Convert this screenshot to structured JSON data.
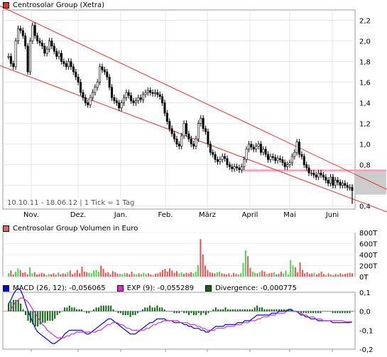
{
  "chart_data": [
    {
      "type": "candlestick",
      "title": "Centrosolar Group (Xetra)",
      "info": "10.10.11 - 18.06.12 | 1 Tick = 1 Tag",
      "x_labels": [
        "Nov.",
        "Dez.",
        "Jan.",
        "Feb.",
        "März",
        "April",
        "Mai",
        "Juni"
      ],
      "y_ticks": [
        "2,2",
        "2,0",
        "1,8",
        "1,6",
        "1,4",
        "1,2",
        "1,0",
        "0,8",
        "0,6",
        "0,4"
      ],
      "ylim": [
        0.37,
        2.3
      ],
      "close": [
        1.85,
        1.78,
        1.75,
        2.0,
        2.12,
        2.1,
        2.05,
        1.95,
        1.7,
        2.0,
        2.15,
        2.05,
        2.0,
        1.98,
        1.95,
        1.88,
        1.92,
        2.0,
        1.95,
        1.9,
        1.85,
        1.88,
        1.8,
        1.78,
        1.75,
        1.8,
        1.75,
        1.7,
        1.65,
        1.6,
        1.5,
        1.45,
        1.4,
        1.38,
        1.45,
        1.5,
        1.55,
        1.6,
        1.75,
        1.72,
        1.7,
        1.65,
        1.55,
        1.45,
        1.42,
        1.4,
        1.35,
        1.4,
        1.45,
        1.5,
        1.47,
        1.42,
        1.4,
        1.42,
        1.45,
        1.43,
        1.48,
        1.5,
        1.52,
        1.5,
        1.49,
        1.5,
        1.48,
        1.46,
        1.4,
        1.3,
        1.22,
        1.15,
        1.1,
        1.05,
        1.0,
        0.98,
        1.08,
        1.2,
        1.1,
        1.05,
        1.0,
        0.98,
        1.05,
        1.2,
        1.25,
        1.15,
        1.12,
        1.0,
        0.92,
        0.9,
        0.85,
        0.83,
        0.85,
        0.88,
        0.86,
        0.8,
        0.78,
        0.76,
        0.78,
        0.77,
        0.75,
        0.78,
        0.85,
        0.95,
        1.0,
        0.97,
        0.95,
        0.98,
        1.0,
        0.92,
        0.95,
        0.9,
        0.85,
        0.88,
        0.87,
        0.84,
        0.86,
        0.85,
        0.82,
        0.78,
        0.8,
        0.82,
        0.88,
        0.92,
        1.02,
        0.9,
        0.88,
        0.8,
        0.77,
        0.72,
        0.72,
        0.7,
        0.68,
        0.72,
        0.7,
        0.68,
        0.65,
        0.62,
        0.68,
        0.6,
        0.65,
        0.63,
        0.6,
        0.62,
        0.6,
        0.58,
        0.58,
        0.55
      ],
      "channel_upper": {
        "x": [
          0,
          143
        ],
        "y": [
          2.3,
          0.72
        ]
      },
      "channel_lower": {
        "x": [
          0,
          143
        ],
        "y": [
          1.73,
          0.47
        ]
      },
      "horizontal_line": 0.745,
      "shaded_region": [
        0.51,
        0.74
      ],
      "colors": {
        "up": "#22aa22",
        "down": "#cc2222",
        "channel": "#dd3333",
        "horizontal": "#ff9ab8",
        "shade": "#cccccc"
      }
    },
    {
      "type": "bar",
      "title": "Centrosolar Group Volumen in Euro",
      "y_ticks": [
        "800T",
        "600T",
        "400T",
        "200T",
        "0T"
      ],
      "ylim": [
        0,
        800
      ],
      "unit": "T",
      "values": [
        60,
        110,
        40,
        90,
        150,
        120,
        70,
        80,
        45,
        170,
        60,
        80,
        40,
        50,
        70,
        55,
        30,
        50,
        40,
        60,
        35,
        75,
        45,
        60,
        50,
        80,
        110,
        45,
        70,
        120,
        60,
        180,
        90,
        80,
        70,
        60,
        110,
        120,
        90,
        200,
        140,
        70,
        80,
        40,
        100,
        80,
        55,
        50,
        45,
        70,
        60,
        40,
        90,
        50,
        40,
        60,
        45,
        70,
        50,
        60,
        40,
        30,
        55,
        60,
        80,
        120,
        140,
        90,
        150,
        110,
        70,
        100,
        60,
        80,
        50,
        70,
        60,
        80,
        60,
        90,
        210,
        680,
        400,
        200,
        120,
        80,
        70,
        60,
        80,
        90,
        60,
        50,
        40,
        60,
        30,
        70,
        50,
        40,
        60,
        250,
        480,
        370,
        160,
        90,
        70,
        60,
        80,
        110,
        90,
        50,
        60,
        70,
        80,
        40,
        50,
        90,
        60,
        110,
        40,
        300,
        200,
        170,
        80,
        260,
        120,
        60,
        80,
        50,
        60,
        70,
        40,
        60,
        90,
        50,
        30,
        60,
        40,
        30,
        50,
        40,
        60,
        40,
        50,
        60,
        70,
        60
      ],
      "up": [
        1,
        0,
        0,
        1,
        1,
        0,
        0,
        0,
        0,
        1,
        1,
        0,
        0,
        0,
        0,
        0,
        1,
        1,
        0,
        0,
        0,
        1,
        0,
        0,
        0,
        1,
        0,
        0,
        0,
        0,
        0,
        0,
        0,
        0,
        1,
        1,
        1,
        1,
        1,
        0,
        0,
        0,
        0,
        0,
        0,
        0,
        0,
        1,
        1,
        1,
        0,
        0,
        0,
        1,
        1,
        0,
        1,
        1,
        1,
        0,
        0,
        1,
        0,
        0,
        0,
        0,
        0,
        0,
        0,
        0,
        0,
        0,
        1,
        1,
        0,
        0,
        0,
        0,
        1,
        1,
        1,
        0,
        0,
        0,
        0,
        0,
        0,
        0,
        1,
        1,
        0,
        0,
        0,
        0,
        1,
        0,
        0,
        1,
        1,
        1,
        1,
        0,
        0,
        1,
        1,
        0,
        1,
        0,
        0,
        1,
        0,
        0,
        1,
        0,
        0,
        0,
        1,
        1,
        1,
        1,
        1,
        0,
        0,
        0,
        0,
        0,
        0,
        0,
        0,
        1,
        0,
        0,
        0,
        0,
        1,
        0,
        1,
        0,
        0,
        1,
        0,
        0,
        0,
        0
      ],
      "colors": {
        "up": "#55cc55",
        "down": "#dd5555"
      }
    },
    {
      "type": "line",
      "series": [
        {
          "name": "MACD (26, 12): -0,056065",
          "color": "#0000cc",
          "values": [
            0.04,
            0.06,
            0.09,
            0.11,
            0.12,
            0.11,
            0.08,
            0.04,
            0.0,
            -0.03,
            -0.06,
            -0.09,
            -0.11,
            -0.12,
            -0.13,
            -0.14,
            -0.15,
            -0.16,
            -0.17,
            -0.17,
            -0.16,
            -0.15,
            -0.14,
            -0.12,
            -0.11,
            -0.1,
            -0.1,
            -0.1,
            -0.1,
            -0.1,
            -0.1,
            -0.11,
            -0.12,
            -0.12,
            -0.11,
            -0.1,
            -0.09,
            -0.08,
            -0.07,
            -0.06,
            -0.05,
            -0.04,
            -0.04,
            -0.05,
            -0.06,
            -0.07,
            -0.08,
            -0.09,
            -0.1,
            -0.11,
            -0.12,
            -0.12,
            -0.12,
            -0.11,
            -0.1,
            -0.09,
            -0.08,
            -0.07,
            -0.06,
            -0.06,
            -0.05,
            -0.04,
            -0.04,
            -0.04,
            -0.04,
            -0.05,
            -0.05,
            -0.05,
            -0.06,
            -0.06,
            -0.06,
            -0.06,
            -0.07,
            -0.07,
            -0.08,
            -0.08,
            -0.09,
            -0.09,
            -0.09,
            -0.1,
            -0.1,
            -0.11,
            -0.11,
            -0.1,
            -0.09,
            -0.08,
            -0.08,
            -0.08,
            -0.08,
            -0.07,
            -0.07,
            -0.07,
            -0.07,
            -0.07,
            -0.06,
            -0.06,
            -0.06,
            -0.05,
            -0.05,
            -0.05,
            -0.04,
            -0.03,
            -0.02,
            -0.02,
            -0.02,
            -0.02,
            -0.02,
            -0.02,
            -0.01,
            -0.01,
            -0.01,
            0.0,
            0.0,
            0.0,
            0.0,
            0.01,
            0.01,
            0.0,
            0.0,
            -0.01,
            -0.02,
            -0.02,
            -0.03,
            -0.03,
            -0.04,
            -0.04,
            -0.04,
            -0.05,
            -0.05,
            -0.05,
            -0.05,
            -0.05,
            -0.05,
            -0.06,
            -0.06,
            -0.06,
            -0.06,
            -0.06,
            -0.06,
            -0.06,
            -0.06,
            -0.056
          ]
        },
        {
          "name": "EXP (9): -0,055289",
          "color": "#cc33cc",
          "values": [
            0.0,
            0.01,
            0.03,
            0.05,
            0.06,
            0.07,
            0.07,
            0.06,
            0.05,
            0.03,
            0.01,
            -0.01,
            -0.03,
            -0.05,
            -0.07,
            -0.08,
            -0.1,
            -0.11,
            -0.12,
            -0.13,
            -0.14,
            -0.14,
            -0.14,
            -0.14,
            -0.13,
            -0.13,
            -0.12,
            -0.12,
            -0.11,
            -0.11,
            -0.11,
            -0.11,
            -0.11,
            -0.11,
            -0.11,
            -0.11,
            -0.11,
            -0.1,
            -0.1,
            -0.09,
            -0.08,
            -0.07,
            -0.07,
            -0.06,
            -0.06,
            -0.06,
            -0.07,
            -0.07,
            -0.08,
            -0.09,
            -0.09,
            -0.1,
            -0.1,
            -0.1,
            -0.1,
            -0.1,
            -0.1,
            -0.09,
            -0.09,
            -0.08,
            -0.07,
            -0.07,
            -0.06,
            -0.06,
            -0.05,
            -0.05,
            -0.05,
            -0.05,
            -0.05,
            -0.05,
            -0.05,
            -0.06,
            -0.06,
            -0.06,
            -0.06,
            -0.07,
            -0.07,
            -0.07,
            -0.08,
            -0.08,
            -0.09,
            -0.09,
            -0.1,
            -0.1,
            -0.1,
            -0.1,
            -0.09,
            -0.09,
            -0.09,
            -0.09,
            -0.08,
            -0.08,
            -0.08,
            -0.08,
            -0.07,
            -0.07,
            -0.07,
            -0.06,
            -0.06,
            -0.06,
            -0.05,
            -0.05,
            -0.05,
            -0.04,
            -0.04,
            -0.03,
            -0.03,
            -0.03,
            -0.02,
            -0.02,
            -0.02,
            -0.01,
            -0.01,
            -0.01,
            -0.01,
            0.0,
            0.0,
            0.0,
            0.0,
            0.0,
            -0.01,
            -0.01,
            -0.02,
            -0.02,
            -0.03,
            -0.03,
            -0.03,
            -0.04,
            -0.04,
            -0.04,
            -0.05,
            -0.05,
            -0.05,
            -0.05,
            -0.05,
            -0.05,
            -0.05,
            -0.05,
            -0.05,
            -0.055,
            -0.055,
            -0.055,
            -0.055
          ]
        }
      ],
      "histogram": {
        "name": "Divergence: -0,000775",
        "color": "#116611",
        "values": [
          0.04,
          0.05,
          0.06,
          0.06,
          0.06,
          0.04,
          0.01,
          -0.02,
          -0.05,
          -0.06,
          -0.07,
          -0.08,
          -0.08,
          -0.07,
          -0.06,
          -0.06,
          -0.05,
          -0.05,
          -0.05,
          -0.04,
          -0.02,
          -0.01,
          0.0,
          0.02,
          0.02,
          0.03,
          0.02,
          0.02,
          0.01,
          0.01,
          0.01,
          0.0,
          -0.01,
          -0.01,
          0.0,
          0.01,
          0.02,
          0.02,
          0.03,
          0.03,
          0.03,
          0.03,
          0.03,
          0.01,
          0.0,
          -0.01,
          -0.01,
          -0.02,
          -0.02,
          -0.02,
          -0.03,
          -0.02,
          -0.02,
          -0.01,
          0.0,
          0.01,
          0.02,
          0.02,
          0.03,
          0.02,
          0.02,
          0.03,
          0.02,
          0.02,
          0.01,
          0.0,
          0.0,
          0.0,
          -0.01,
          -0.01,
          -0.01,
          0.0,
          -0.01,
          -0.01,
          -0.02,
          -0.01,
          -0.02,
          -0.02,
          -0.01,
          -0.02,
          -0.01,
          -0.02,
          -0.01,
          0.0,
          0.01,
          0.02,
          0.01,
          0.01,
          0.01,
          0.02,
          0.01,
          0.01,
          0.01,
          0.01,
          0.01,
          0.01,
          0.01,
          0.01,
          0.01,
          0.01,
          0.01,
          0.02,
          0.03,
          0.02,
          0.02,
          0.01,
          0.01,
          0.01,
          0.01,
          0.01,
          0.01,
          0.01,
          0.01,
          0.01,
          0.01,
          0.01,
          0.01,
          0.0,
          0.0,
          -0.01,
          -0.01,
          -0.01,
          -0.01,
          -0.01,
          -0.01,
          -0.01,
          -0.01,
          -0.01,
          -0.01,
          0.0,
          0.0,
          0.0,
          0.0,
          -0.01,
          -0.01,
          -0.01,
          -0.01,
          -0.01,
          -0.01,
          -0.01,
          -0.01,
          -0.0008
        ]
      },
      "y_ticks": [
        "0,1",
        "0,0",
        "-0,1",
        "-0,2"
      ],
      "ylim": [
        -0.2,
        0.1
      ],
      "zero_line_color": "#66bbbb"
    }
  ]
}
